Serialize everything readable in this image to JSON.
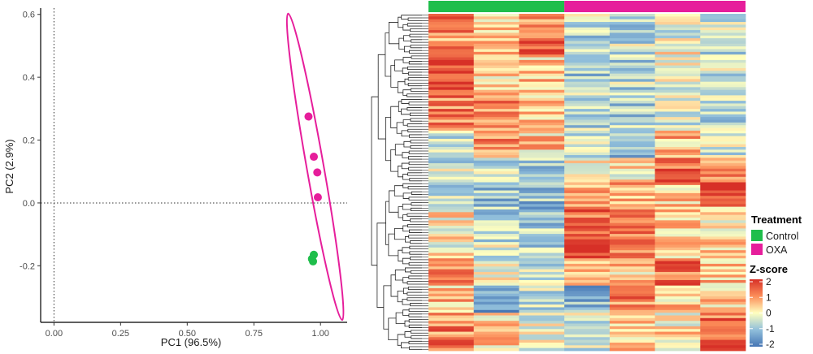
{
  "colors": {
    "control": "#1FBE4B",
    "oxa": "#E61E9B",
    "zscore_low": "#4575B4",
    "zscore_mid": "#FFFFBF",
    "zscore_high": "#D73027"
  },
  "chart_data": [
    {
      "type": "scatter",
      "title": "",
      "xlabel": "PC1 (96.5%)",
      "ylabel": "PC2 (2.9%)",
      "xlim": [
        -0.05,
        1.1
      ],
      "ylim": [
        -0.38,
        0.62
      ],
      "x_ticks": [
        "0.00",
        "0.25",
        "0.50",
        "0.75",
        "1.00"
      ],
      "y_ticks": [
        "-0.2",
        "0.0",
        "0.2",
        "0.4",
        "0.6"
      ],
      "reference_lines": {
        "x": 0,
        "y": 0,
        "style": "dotted"
      },
      "grid": false,
      "series": [
        {
          "name": "Control",
          "color": "#1FBE4B",
          "points": [
            [
              0.975,
              -0.165
            ],
            [
              0.968,
              -0.178
            ],
            [
              0.972,
              -0.186
            ]
          ]
        },
        {
          "name": "OXA",
          "color": "#E61E9B",
          "points": [
            [
              0.955,
              0.275
            ],
            [
              0.975,
              0.147
            ],
            [
              0.988,
              0.097
            ],
            [
              0.99,
              0.018
            ]
          ]
        }
      ],
      "ellipses": [
        {
          "group": "OXA",
          "center": [
            0.98,
            0.115
          ],
          "semi_axes_data": [
            0.032,
            0.495
          ],
          "tilt_deg": 10
        }
      ]
    },
    {
      "type": "heatmap",
      "columns": 7,
      "rows": 124,
      "column_groups": [
        "Control",
        "Control",
        "Control",
        "OXA",
        "OXA",
        "OXA",
        "OXA"
      ],
      "row_dendrogram": true,
      "legend": {
        "title": "Treatment",
        "items": [
          {
            "label": "Control",
            "color": "#1FBE4B"
          },
          {
            "label": "OXA",
            "color": "#E61E9B"
          }
        ]
      },
      "colorbar": {
        "title": "Z-score",
        "range": [
          -2,
          2
        ],
        "tick_labels": [
          "2",
          "1",
          "0",
          "-1",
          "-2"
        ]
      }
    }
  ]
}
